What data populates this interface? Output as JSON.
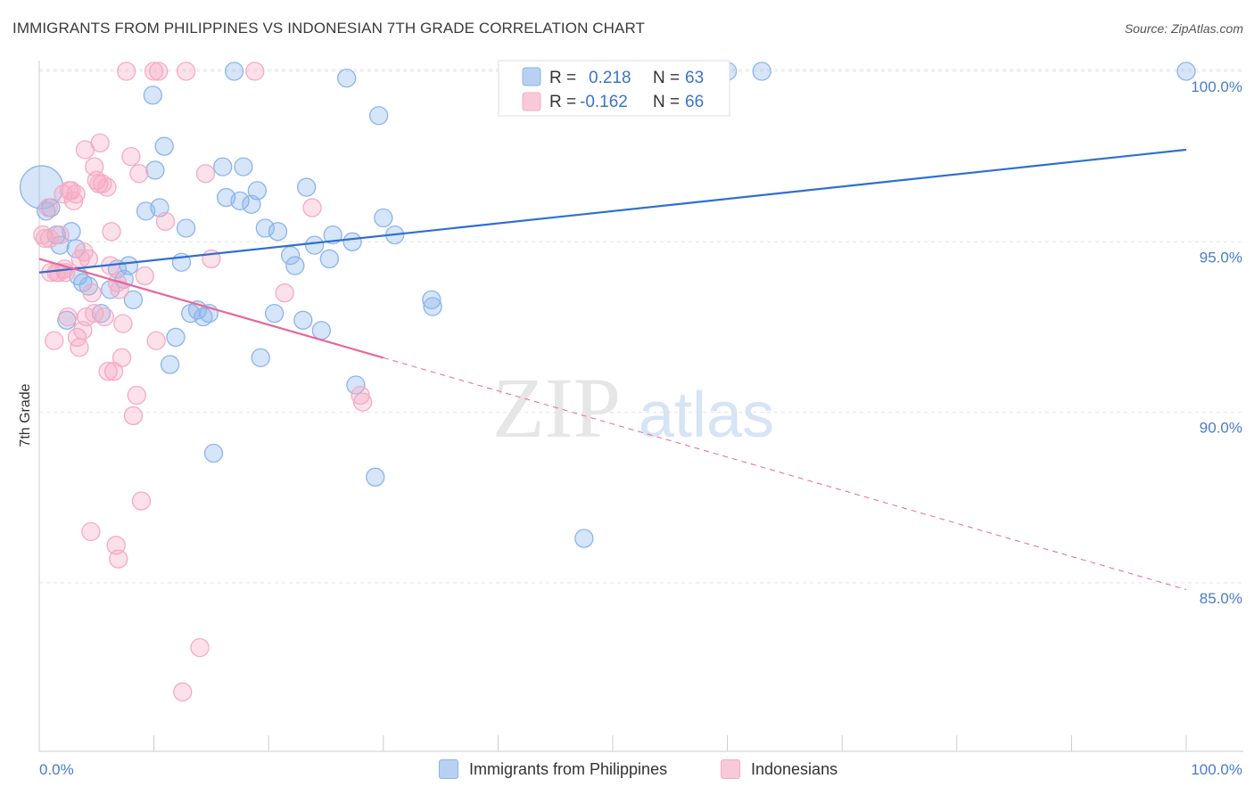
{
  "title": "IMMIGRANTS FROM PHILIPPINES VS INDONESIAN 7TH GRADE CORRELATION CHART",
  "source": "Source: ZipAtlas.com",
  "watermark": {
    "zip": "ZIP",
    "atlas": "atlas"
  },
  "chart_data": {
    "type": "scatter",
    "ylabel": "7th Grade",
    "xlabel": "",
    "x_tick_labels": [
      "0.0%",
      "100.0%"
    ],
    "y_tick_labels": [
      "100.0%",
      "95.0%",
      "90.0%",
      "85.0%"
    ],
    "y_ticks": [
      100,
      95,
      90,
      85
    ],
    "xlim": [
      0,
      100
    ],
    "ylim": [
      80.5,
      100.8
    ],
    "grid": true,
    "legend_placement": "top-center",
    "series": [
      {
        "name": "Immigrants from Philippines",
        "color": "#8ab4ea",
        "line_color": "#2f6fcf",
        "r_label": "R =",
        "r_value": "0.218",
        "n_label": "N =",
        "n_value": "63",
        "trend": {
          "x0": 0,
          "y0": 94.1,
          "x1": 100,
          "y1": 97.7
        },
        "points": [
          [
            0.2,
            96.6,
            24
          ],
          [
            1.0,
            96.0,
            10
          ],
          [
            1.5,
            95.2,
            10
          ],
          [
            1.8,
            94.9,
            10
          ],
          [
            2.4,
            92.7,
            10
          ],
          [
            2.8,
            95.3,
            10
          ],
          [
            3.2,
            94.8,
            10
          ],
          [
            3.4,
            94.0,
            10
          ],
          [
            3.8,
            93.8,
            10
          ],
          [
            4.3,
            93.7,
            10
          ],
          [
            5.4,
            92.9,
            10
          ],
          [
            6.2,
            93.6,
            10
          ],
          [
            6.8,
            94.2,
            10
          ],
          [
            7.4,
            93.9,
            10
          ],
          [
            7.8,
            94.3,
            10
          ],
          [
            8.2,
            93.3,
            10
          ],
          [
            9.3,
            95.9,
            10
          ],
          [
            9.9,
            99.3,
            10
          ],
          [
            10.1,
            97.1,
            10
          ],
          [
            10.5,
            96.0,
            10
          ],
          [
            10.9,
            97.8,
            10
          ],
          [
            11.4,
            91.4,
            10
          ],
          [
            11.9,
            92.2,
            10
          ],
          [
            12.4,
            94.4,
            10
          ],
          [
            12.8,
            95.4,
            10
          ],
          [
            13.2,
            92.9,
            10
          ],
          [
            13.8,
            93.0,
            10
          ],
          [
            14.3,
            92.8,
            10
          ],
          [
            14.8,
            92.9,
            10
          ],
          [
            15.2,
            88.8,
            10
          ],
          [
            16.0,
            97.2,
            10
          ],
          [
            16.3,
            96.3,
            10
          ],
          [
            17.0,
            100.0,
            10
          ],
          [
            17.5,
            96.2,
            10
          ],
          [
            17.8,
            97.2,
            10
          ],
          [
            18.5,
            96.1,
            10
          ],
          [
            19.0,
            96.5,
            10
          ],
          [
            19.3,
            91.6,
            10
          ],
          [
            19.7,
            95.4,
            10
          ],
          [
            20.5,
            92.9,
            10
          ],
          [
            20.8,
            95.3,
            10
          ],
          [
            21.9,
            94.6,
            10
          ],
          [
            22.3,
            94.3,
            10
          ],
          [
            23.0,
            92.7,
            10
          ],
          [
            23.3,
            96.6,
            10
          ],
          [
            24.0,
            94.9,
            10
          ],
          [
            24.6,
            92.4,
            10
          ],
          [
            25.3,
            94.5,
            10
          ],
          [
            25.6,
            95.2,
            10
          ],
          [
            26.8,
            99.8,
            10
          ],
          [
            27.3,
            95.0,
            10
          ],
          [
            27.6,
            90.8,
            10
          ],
          [
            29.3,
            88.1,
            10
          ],
          [
            29.6,
            98.7,
            10
          ],
          [
            30.0,
            95.7,
            10
          ],
          [
            31.0,
            95.2,
            10
          ],
          [
            34.2,
            93.3,
            10
          ],
          [
            34.3,
            93.1,
            10
          ],
          [
            47.5,
            86.3,
            10
          ],
          [
            60.0,
            100.0,
            10
          ],
          [
            63.0,
            100.0,
            10
          ],
          [
            100.0,
            100.0,
            10
          ],
          [
            0.6,
            95.9,
            10
          ]
        ]
      },
      {
        "name": "Indonesians",
        "color": "#f5a9c4",
        "line_color": "#e8679a",
        "r_label": "R =",
        "r_value": "-0.162",
        "n_label": "N =",
        "n_value": "66",
        "trend": {
          "x0": 0,
          "y0": 94.5,
          "x1": 30,
          "y1": 91.6,
          "dash_x1": 100,
          "dash_y1": 84.8
        },
        "points": [
          [
            0.3,
            95.2,
            10
          ],
          [
            0.5,
            95.1,
            10
          ],
          [
            0.8,
            96.0,
            10
          ],
          [
            1.0,
            94.1,
            10
          ],
          [
            1.3,
            92.1,
            10
          ],
          [
            1.5,
            94.1,
            10
          ],
          [
            1.8,
            95.2,
            10
          ],
          [
            2.1,
            96.4,
            10
          ],
          [
            2.3,
            94.1,
            10
          ],
          [
            2.5,
            92.8,
            10
          ],
          [
            2.8,
            96.5,
            10
          ],
          [
            3.0,
            96.2,
            10
          ],
          [
            3.2,
            96.4,
            10
          ],
          [
            3.3,
            92.2,
            10
          ],
          [
            3.5,
            91.9,
            10
          ],
          [
            3.6,
            94.5,
            10
          ],
          [
            3.8,
            92.4,
            10
          ],
          [
            4.0,
            97.7,
            10
          ],
          [
            4.1,
            92.8,
            10
          ],
          [
            4.3,
            94.5,
            10
          ],
          [
            4.5,
            86.5,
            10
          ],
          [
            4.6,
            93.5,
            10
          ],
          [
            4.8,
            97.2,
            10
          ],
          [
            4.8,
            92.9,
            10
          ],
          [
            5.0,
            96.8,
            10
          ],
          [
            5.2,
            96.7,
            10
          ],
          [
            5.3,
            97.9,
            10
          ],
          [
            5.5,
            96.7,
            10
          ],
          [
            5.7,
            92.8,
            10
          ],
          [
            6.0,
            91.2,
            10
          ],
          [
            6.2,
            94.3,
            10
          ],
          [
            6.3,
            95.3,
            10
          ],
          [
            6.5,
            91.2,
            10
          ],
          [
            6.7,
            86.1,
            10
          ],
          [
            6.9,
            85.7,
            10
          ],
          [
            7.0,
            93.6,
            10
          ],
          [
            7.2,
            91.6,
            10
          ],
          [
            7.3,
            92.6,
            10
          ],
          [
            7.6,
            100.0,
            10
          ],
          [
            8.0,
            97.5,
            10
          ],
          [
            8.2,
            89.9,
            10
          ],
          [
            8.5,
            90.5,
            10
          ],
          [
            8.7,
            97.0,
            10
          ],
          [
            8.9,
            87.4,
            10
          ],
          [
            9.2,
            94.0,
            10
          ],
          [
            10.0,
            100.0,
            10
          ],
          [
            10.2,
            92.1,
            10
          ],
          [
            10.4,
            100.0,
            10
          ],
          [
            11.0,
            95.6,
            10
          ],
          [
            12.8,
            100.0,
            10
          ],
          [
            14.0,
            83.1,
            10
          ],
          [
            14.5,
            97.0,
            10
          ],
          [
            15.0,
            94.5,
            10
          ],
          [
            12.5,
            81.8,
            10
          ],
          [
            18.8,
            100.0,
            10
          ],
          [
            21.4,
            93.5,
            10
          ],
          [
            23.8,
            96.0,
            10
          ],
          [
            28.0,
            90.5,
            10
          ],
          [
            28.2,
            90.3,
            10
          ],
          [
            2.2,
            94.2,
            10
          ],
          [
            1.7,
            94.1,
            10
          ],
          [
            3.9,
            94.7,
            10
          ],
          [
            5.9,
            96.6,
            10
          ],
          [
            0.9,
            95.1,
            10
          ],
          [
            2.6,
            96.5,
            10
          ],
          [
            6.8,
            93.8,
            10
          ]
        ]
      }
    ]
  }
}
